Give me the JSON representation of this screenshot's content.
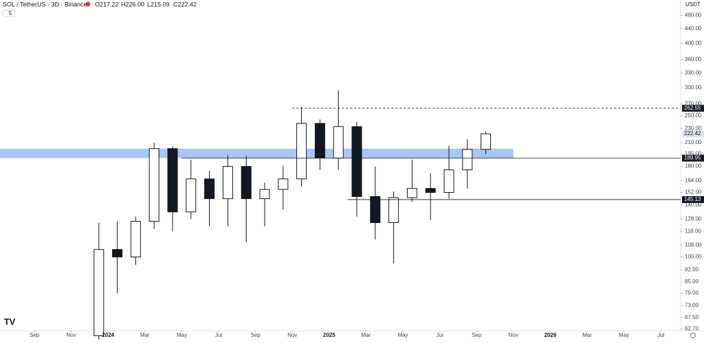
{
  "header": {
    "symbol": "SOL / TetherUS · 3D · Binance",
    "ohlc": [
      "O217.22",
      "H226.00",
      "L215.09",
      "C222.42"
    ],
    "indicators": "5",
    "currency": "USDT"
  },
  "chart_data": {
    "type": "candlestick",
    "log_scale": true,
    "x": [
      "2023-12",
      "2024-01",
      "2024-02",
      "2024-03",
      "2024-04",
      "2024-05",
      "2024-06",
      "2024-07",
      "2024-08",
      "2024-09",
      "2024-10",
      "2024-11",
      "2024-12",
      "2025-01",
      "2025-02",
      "2025-03",
      "2025-04",
      "2025-05",
      "2025-06",
      "2025-07",
      "2025-08",
      "2025-09"
    ],
    "open": [
      60,
      105,
      100,
      126,
      202,
      134,
      166,
      146,
      180,
      146,
      155,
      166,
      238,
      190,
      233,
      148,
      125,
      147,
      156,
      152,
      176,
      201
    ],
    "high": [
      125,
      126,
      130,
      210,
      205,
      188,
      175,
      194,
      193,
      162,
      181,
      265,
      244,
      295,
      240,
      180,
      153,
      188,
      172,
      206,
      215,
      226
    ],
    "low": [
      58,
      79,
      95,
      120,
      118,
      128,
      122,
      122,
      110,
      122,
      136,
      158,
      176,
      176,
      130,
      112,
      96,
      143,
      127,
      146,
      156,
      195
    ],
    "close": [
      105,
      100,
      126,
      202,
      134,
      166,
      146,
      180,
      146,
      155,
      166,
      238,
      190,
      233,
      148,
      125,
      147,
      156,
      152,
      176,
      201,
      222.42
    ],
    "up_color": "#ffffff",
    "down_color": "#131722",
    "ylim": [
      62,
      530
    ],
    "yticks": [
      {
        "value": 480,
        "label": "480.00"
      },
      {
        "value": 440,
        "label": "440.00"
      },
      {
        "value": 400,
        "label": "400.00"
      },
      {
        "value": 360,
        "label": "360.00"
      },
      {
        "value": 330,
        "label": "330.00"
      },
      {
        "value": 300,
        "label": "300.00"
      },
      {
        "value": 270,
        "label": "270.00"
      },
      {
        "value": 250,
        "label": "250.00"
      },
      {
        "value": 230,
        "label": "230.00"
      },
      {
        "value": 210,
        "label": "210.00"
      },
      {
        "value": 195,
        "label": "195.00"
      },
      {
        "value": 180,
        "label": "180.00"
      },
      {
        "value": 164,
        "label": "164.00"
      },
      {
        "value": 152,
        "label": "152.00"
      },
      {
        "value": 140,
        "label": "140.00"
      },
      {
        "value": 128,
        "label": "128.00"
      },
      {
        "value": 118,
        "label": "118.00"
      },
      {
        "value": 108,
        "label": "108.00"
      },
      {
        "value": 100,
        "label": "100.00"
      },
      {
        "value": 92,
        "label": "92.00"
      },
      {
        "value": 85,
        "label": "85.00"
      },
      {
        "value": 79,
        "label": "79.00"
      },
      {
        "value": 73,
        "label": "73.00"
      },
      {
        "value": 67.5,
        "label": "67.50"
      },
      {
        "value": 62.7,
        "label": "62.70"
      }
    ],
    "xticks": [
      {
        "value": "2023-09",
        "label": "Sep"
      },
      {
        "value": "2023-11",
        "label": "Nov"
      },
      {
        "value": "2024-01",
        "label": "2024"
      },
      {
        "value": "2024-03",
        "label": "Mar"
      },
      {
        "value": "2024-05",
        "label": "May"
      },
      {
        "value": "2024-07",
        "label": "Jul"
      },
      {
        "value": "2024-09",
        "label": "Sep"
      },
      {
        "value": "2024-11",
        "label": "Nov"
      },
      {
        "value": "2025-01",
        "label": "2025"
      },
      {
        "value": "2025-03",
        "label": "Mar"
      },
      {
        "value": "2025-05",
        "label": "May"
      },
      {
        "value": "2025-07",
        "label": "Jul"
      },
      {
        "value": "2025-09",
        "label": "Sep"
      },
      {
        "value": "2025-11",
        "label": "Nov"
      },
      {
        "value": "2026-01",
        "label": "2026"
      },
      {
        "value": "2026-03",
        "label": "Mar"
      },
      {
        "value": "2026-05",
        "label": "May"
      },
      {
        "value": "2026-07",
        "label": "Jul"
      }
    ],
    "zones": [
      {
        "low": 189.95,
        "high": 202,
        "to": "2025-11",
        "color": "#a9c6f5"
      }
    ],
    "levels": [
      {
        "value": 262.55,
        "from": "2024-11",
        "dashed": true
      },
      {
        "value": 189.95,
        "from": "2024-05",
        "dashed": false
      },
      {
        "value": 145.13,
        "from": "2025-02",
        "dashed": false
      }
    ]
  }
}
